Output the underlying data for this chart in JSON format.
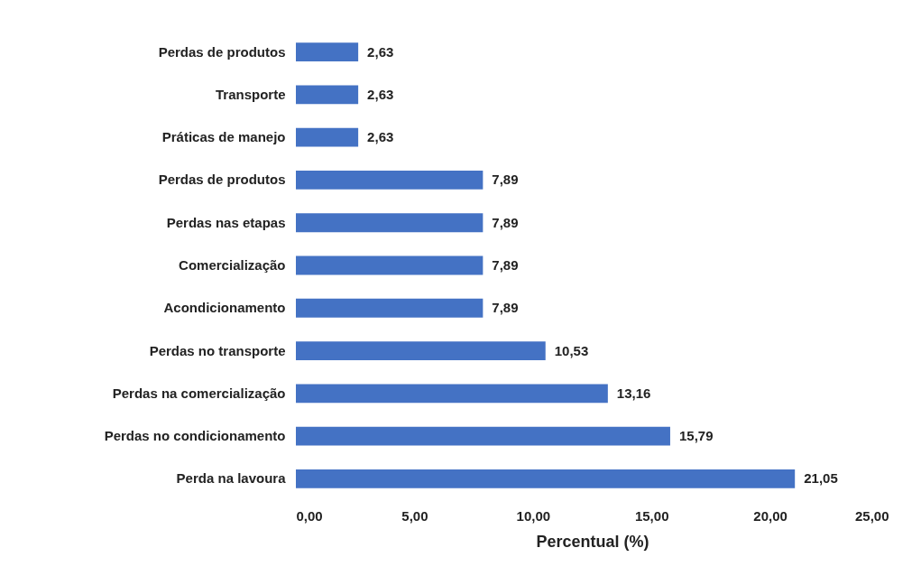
{
  "chart_data": {
    "type": "bar",
    "orientation": "horizontal",
    "xlabel": "Percentual (%)",
    "categories": [
      "Perdas de produtos",
      "Transporte",
      "Práticas de manejo",
      "Perdas de produtos",
      "Perdas nas etapas",
      "Comercialização",
      "Acondicionamento",
      "Perdas no transporte",
      "Perdas na comercialização",
      "Perdas no condicionamento",
      "Perda na lavoura"
    ],
    "values": [
      2.63,
      2.63,
      2.63,
      7.89,
      7.89,
      7.89,
      7.89,
      10.53,
      13.16,
      15.79,
      21.05
    ],
    "value_labels": [
      "2,63",
      "2,63",
      "2,63",
      "7,89",
      "7,89",
      "7,89",
      "7,89",
      "10,53",
      "13,16",
      "15,79",
      "21,05"
    ],
    "color": "#4472c4",
    "xlim": [
      0,
      25
    ],
    "xticks": [
      {
        "value": 0,
        "label": "0,00"
      },
      {
        "value": 5,
        "label": "5,00"
      },
      {
        "value": 10,
        "label": "10,00"
      },
      {
        "value": 15,
        "label": "15,00"
      },
      {
        "value": 20,
        "label": "20,00"
      },
      {
        "value": 25,
        "label": "25,00"
      }
    ],
    "grid": false
  }
}
